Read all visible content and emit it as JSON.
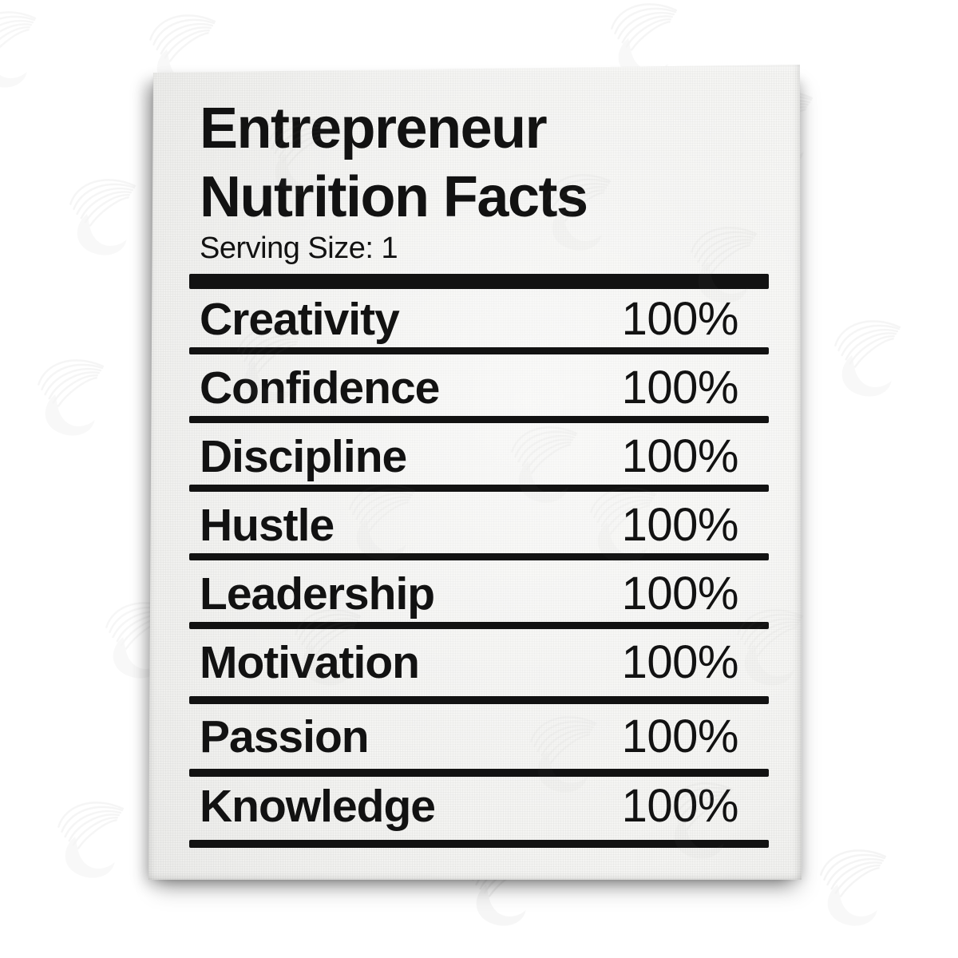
{
  "label": {
    "title_line1": "Entrepreneur",
    "title_line2": "Nutrition Facts",
    "serving_size": "Serving Size: 1",
    "rows": [
      {
        "trait": "Creativity",
        "value": "100%"
      },
      {
        "trait": "Confidence",
        "value": "100%"
      },
      {
        "trait": "Discipline",
        "value": "100%"
      },
      {
        "trait": "Hustle",
        "value": "100%"
      },
      {
        "trait": "Leadership",
        "value": "100%"
      },
      {
        "trait": "Motivation",
        "value": "100%"
      },
      {
        "trait": "Passion",
        "value": "100%"
      },
      {
        "trait": "Knowledge",
        "value": "100%"
      }
    ]
  },
  "icons": {
    "watermark": "swirl-watermark-icon"
  },
  "colors": {
    "background": "#ffffff",
    "canvas": "#f2f2f0",
    "ink": "#121212",
    "watermark": "#8d8d8d"
  }
}
